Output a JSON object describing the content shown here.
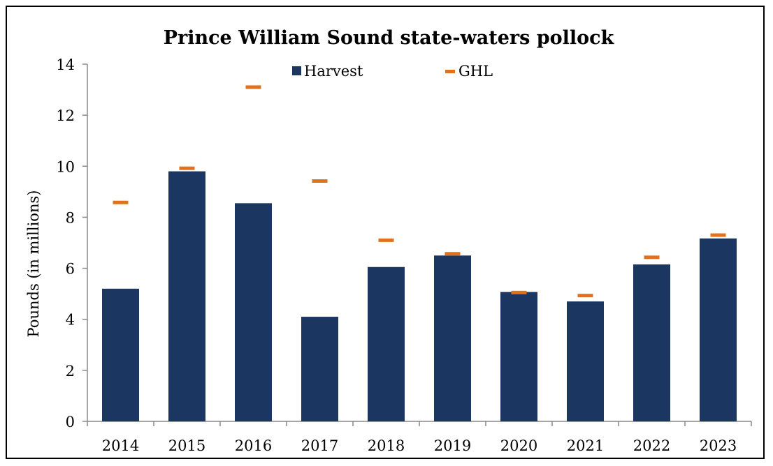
{
  "chart_data": {
    "type": "bar",
    "title": "Prince William Sound state-waters pollock",
    "xlabel": "",
    "ylabel": "Pounds (in millions)",
    "ylim": [
      0,
      14
    ],
    "yticks": [
      0,
      2,
      4,
      6,
      8,
      10,
      12,
      14
    ],
    "categories": [
      "2014",
      "2015",
      "2016",
      "2017",
      "2018",
      "2019",
      "2020",
      "2021",
      "2022",
      "2023"
    ],
    "series": [
      {
        "name": "Harvest",
        "type": "bar",
        "color": "#1b3660",
        "values": [
          5.2,
          9.8,
          8.55,
          4.1,
          6.05,
          6.5,
          5.07,
          4.7,
          6.15,
          7.17
        ]
      },
      {
        "name": "GHL",
        "type": "marker",
        "color": "#e2711d",
        "values": [
          8.58,
          9.92,
          13.1,
          9.42,
          7.1,
          6.57,
          5.05,
          4.93,
          6.43,
          7.3
        ]
      }
    ],
    "grid": false,
    "legend": "top"
  }
}
